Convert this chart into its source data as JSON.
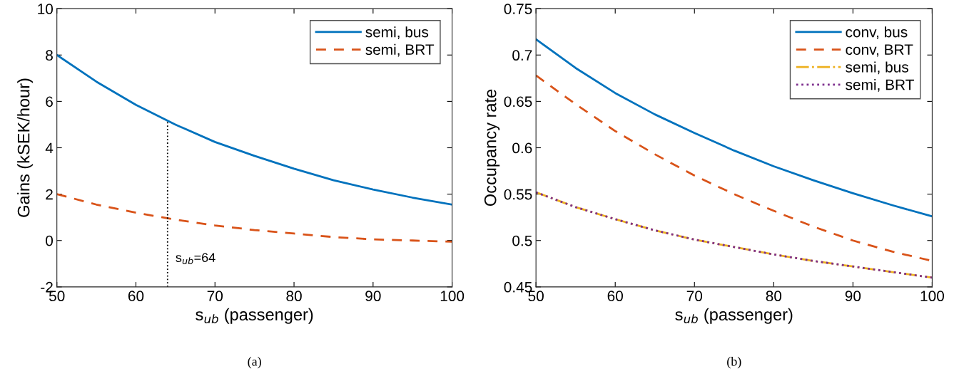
{
  "chart_data": [
    {
      "type": "line",
      "x": [
        50,
        55,
        60,
        65,
        70,
        75,
        80,
        85,
        90,
        95,
        100
      ],
      "xlabel": "s$_{ub}$ (passenger)",
      "ylabel": "Gains (kSEK/hour)",
      "xlim": [
        50,
        100
      ],
      "xticks": [
        50,
        60,
        70,
        80,
        90,
        100
      ],
      "ylim": [
        -2,
        10
      ],
      "yticks": [
        -2,
        0,
        2,
        4,
        6,
        8,
        10
      ],
      "grid": false,
      "legend": "top right",
      "series": [
        {
          "name": "semi, bus",
          "color": "#0072bd",
          "line_style": "solid",
          "values": [
            8.0,
            6.85,
            5.85,
            5.0,
            4.25,
            3.65,
            3.1,
            2.6,
            2.2,
            1.85,
            1.55
          ]
        },
        {
          "name": "semi, BRT",
          "color": "#d95319",
          "line_style": "dashed",
          "values": [
            2.0,
            1.55,
            1.2,
            0.9,
            0.65,
            0.45,
            0.3,
            0.15,
            0.05,
            0.0,
            -0.05
          ]
        }
      ],
      "ref_lines": [
        {
          "axis": "x",
          "value": 64,
          "label": "s$_{ub}$=64",
          "color": "#000000",
          "line_style": "dotted"
        }
      ],
      "annotations": [
        "(a)"
      ]
    },
    {
      "type": "line",
      "x": [
        50,
        55,
        60,
        65,
        70,
        75,
        80,
        85,
        90,
        95,
        100
      ],
      "xlabel": "s$_{ub}$ (passenger)",
      "ylabel": "Occupancy rate",
      "xlim": [
        50,
        100
      ],
      "xticks": [
        50,
        60,
        70,
        80,
        90,
        100
      ],
      "ylim": [
        0.45,
        0.75
      ],
      "yticks": [
        0.45,
        0.5,
        0.55,
        0.6,
        0.65,
        0.7,
        0.75
      ],
      "grid": false,
      "legend": "top right",
      "series": [
        {
          "name": "conv, bus",
          "color": "#0072bd",
          "line_style": "solid",
          "values": [
            0.717,
            0.686,
            0.659,
            0.636,
            0.616,
            0.597,
            0.58,
            0.565,
            0.551,
            0.538,
            0.526
          ]
        },
        {
          "name": "conv, BRT",
          "color": "#d95319",
          "line_style": "dashed",
          "values": [
            0.678,
            0.647,
            0.618,
            0.593,
            0.57,
            0.55,
            0.532,
            0.515,
            0.5,
            0.488,
            0.478
          ]
        },
        {
          "name": "semi, bus",
          "color": "#edb120",
          "line_style": "dashdot",
          "values": [
            0.552,
            0.536,
            0.523,
            0.511,
            0.501,
            0.493,
            0.485,
            0.478,
            0.472,
            0.466,
            0.46
          ]
        },
        {
          "name": "semi, BRT",
          "color": "#7e2f8e",
          "line_style": "dotted",
          "values": [
            0.552,
            0.536,
            0.523,
            0.511,
            0.501,
            0.493,
            0.485,
            0.478,
            0.472,
            0.466,
            0.46
          ]
        }
      ],
      "annotations": [
        "(b)"
      ]
    }
  ]
}
